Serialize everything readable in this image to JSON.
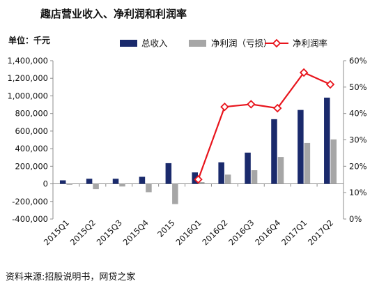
{
  "chart_data": {
    "type": "bar",
    "title": "趣店营业收入、净利润和利润率",
    "unit_label": "单位：千元",
    "source": "资料来源:招股说明书，网贷之家",
    "categories": [
      "2015Q1",
      "2015Q2",
      "2015Q3",
      "2015Q4",
      "2015",
      "2016Q1",
      "2016Q2",
      "2016Q3",
      "2016Q4",
      "2017Q1",
      "2017Q2"
    ],
    "series": [
      {
        "name": "总收入",
        "kind": "bar",
        "axis": "left",
        "color": "#1a2a6c",
        "values": [
          40000,
          58000,
          58000,
          80000,
          235000,
          130000,
          245000,
          355000,
          735000,
          840000,
          980000
        ]
      },
      {
        "name": "净利润（亏损）",
        "kind": "bar",
        "axis": "left",
        "color": "#a6a6a6",
        "values": [
          -10000,
          -60000,
          -30000,
          -95000,
          -230000,
          20000,
          105000,
          155000,
          305000,
          465000,
          505000
        ]
      },
      {
        "name": "净利润率",
        "kind": "line",
        "axis": "right",
        "color": "#e8141c",
        "values": [
          null,
          null,
          null,
          null,
          null,
          15,
          42.5,
          43.5,
          42,
          55.5,
          51
        ]
      }
    ],
    "y_left": {
      "min": -400000,
      "max": 1400000,
      "ticks": [
        -400000,
        -200000,
        0,
        200000,
        400000,
        600000,
        800000,
        1000000,
        1200000,
        1400000
      ],
      "tick_labels": [
        "-400,000",
        "-200,000",
        "0",
        "200,000",
        "400,000",
        "600,000",
        "800,000",
        "1,000,000",
        "1,200,000",
        "1,400,000"
      ]
    },
    "y_right": {
      "min": 0,
      "max": 60,
      "ticks": [
        0,
        10,
        20,
        30,
        40,
        50,
        60
      ],
      "tick_labels": [
        "0%",
        "10%",
        "20%",
        "30%",
        "40%",
        "50%",
        "60%"
      ]
    },
    "legend_position": "top"
  }
}
